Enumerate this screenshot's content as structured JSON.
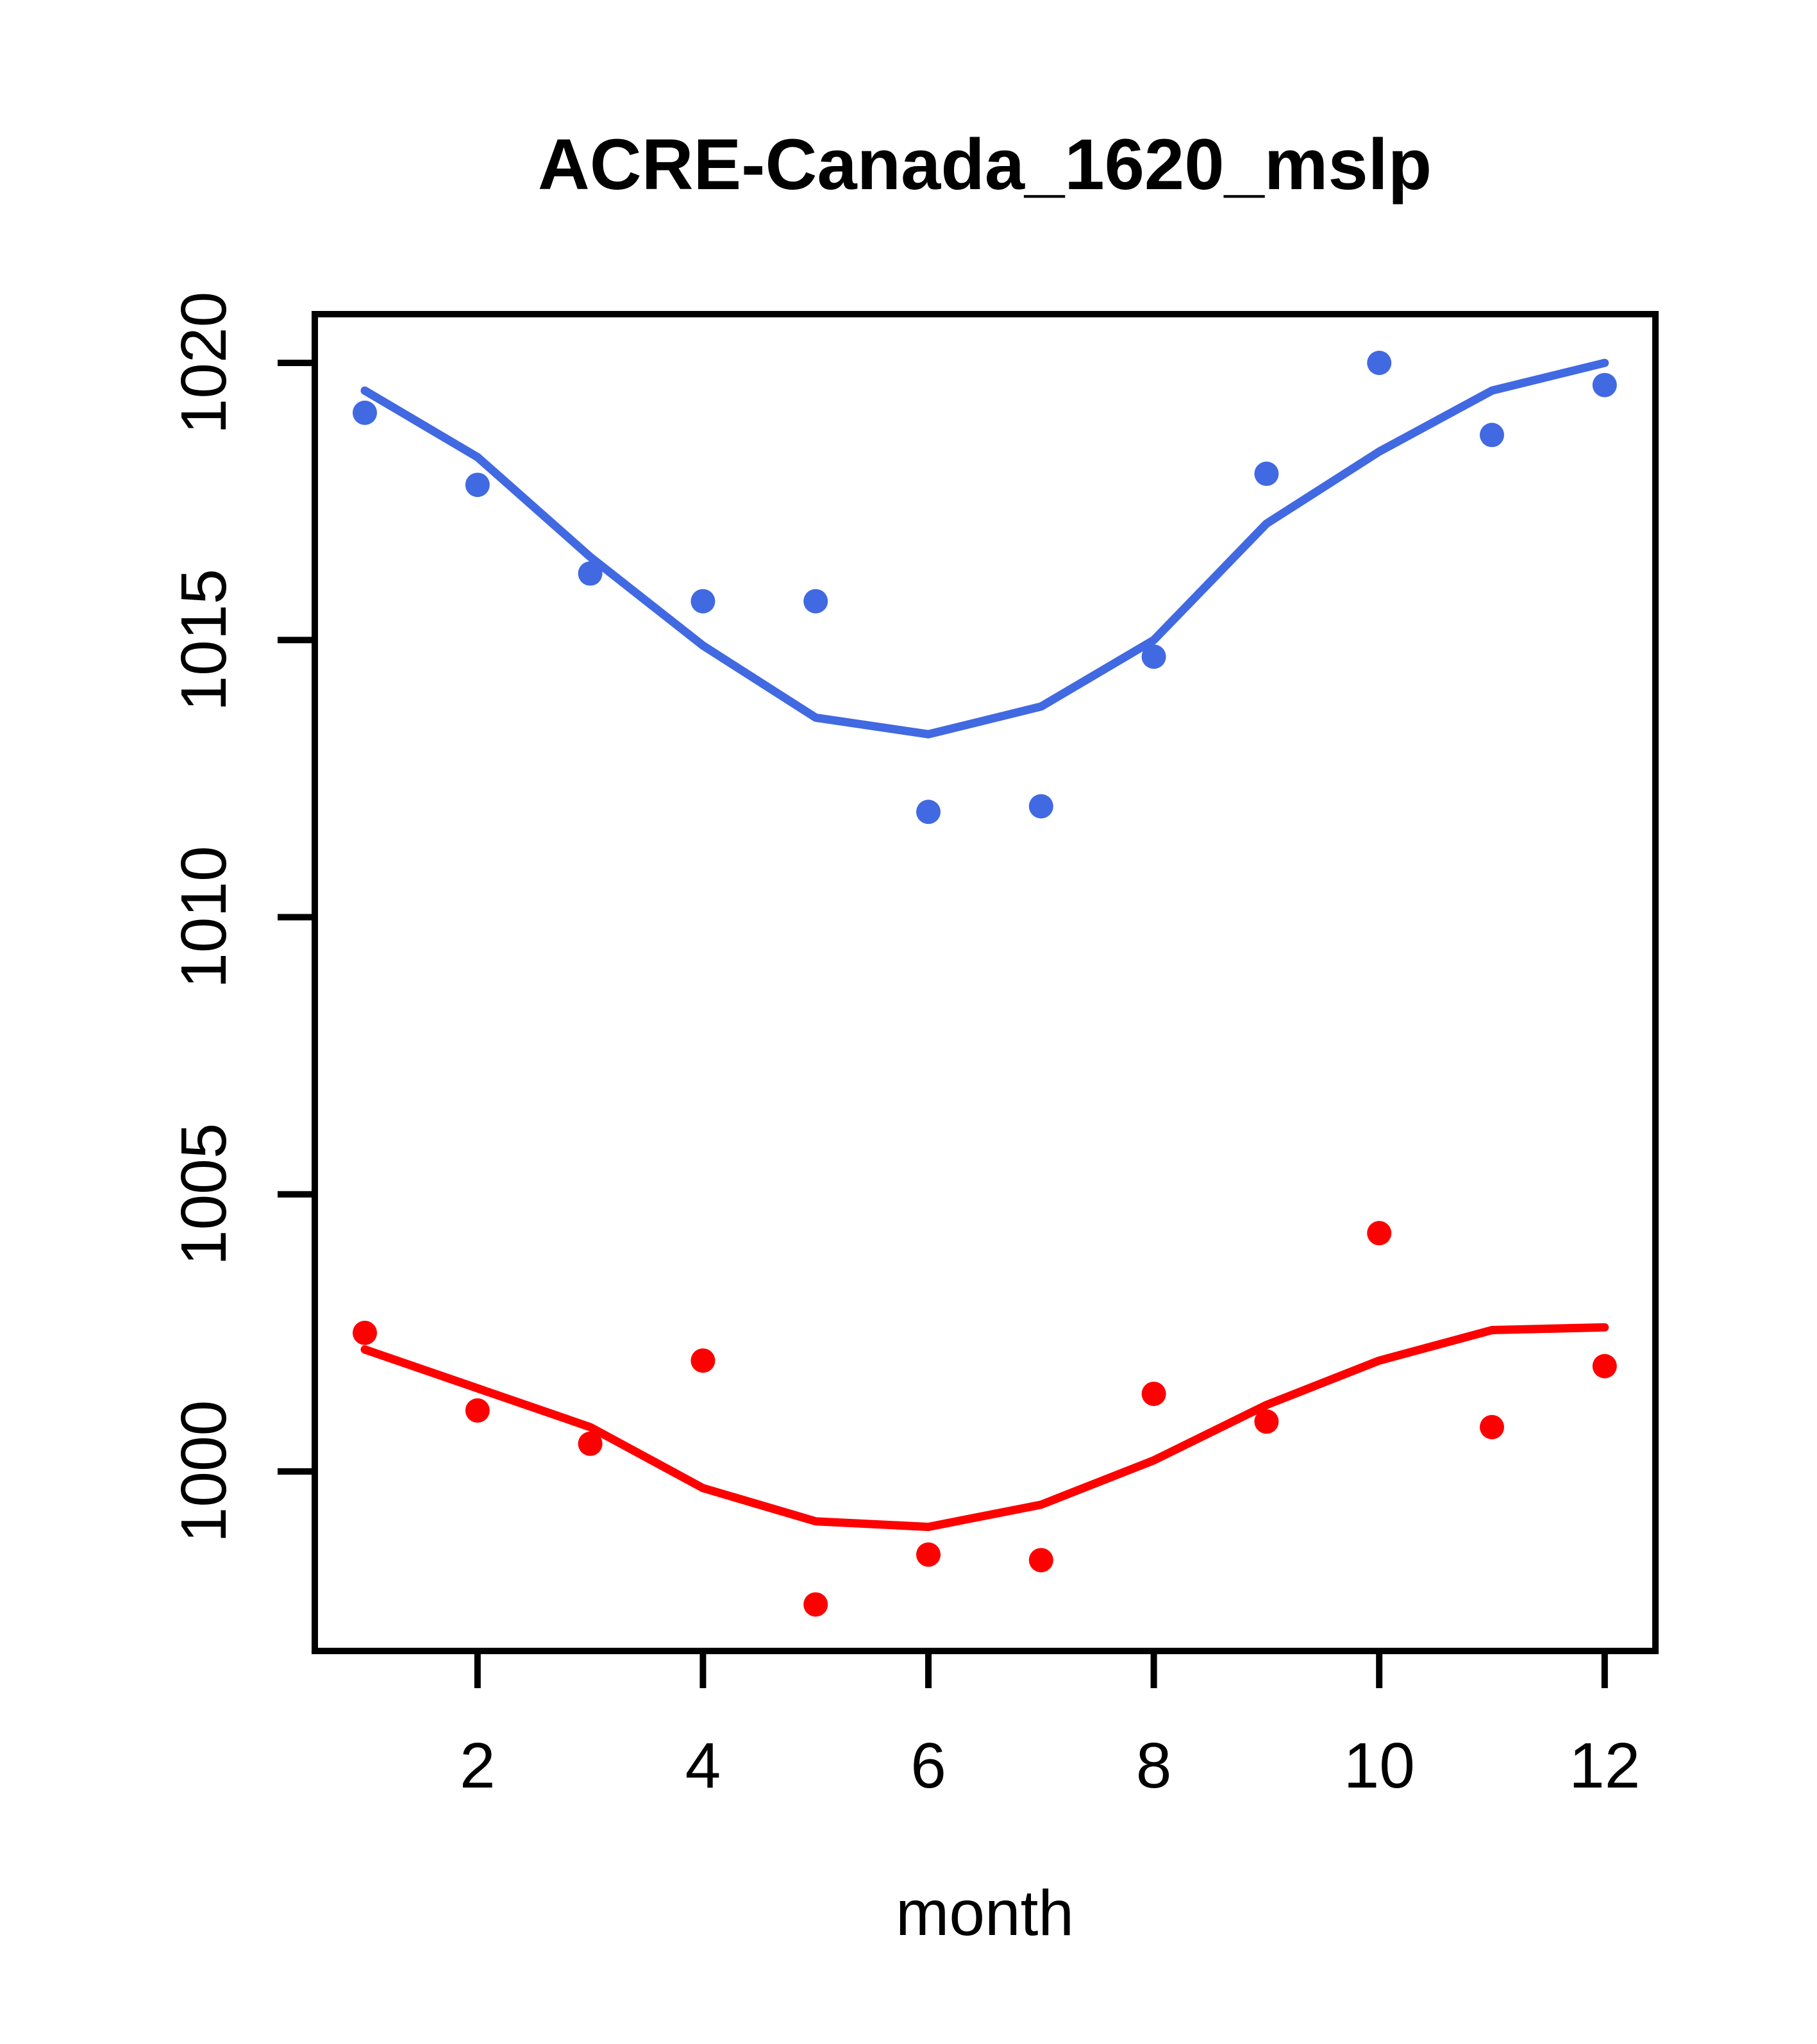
{
  "chart_data": {
    "type": "scatter",
    "title": "ACRE-Canada_1620_mslp",
    "xlabel": "month",
    "ylabel": "",
    "x": [
      1,
      2,
      3,
      4,
      5,
      6,
      7,
      8,
      9,
      10,
      11,
      12
    ],
    "x_tick_labels": [
      "2",
      "4",
      "6",
      "8",
      "10",
      "12"
    ],
    "x_tick_values": [
      2,
      4,
      6,
      8,
      10,
      12
    ],
    "y_tick_labels": [
      "1000",
      "1005",
      "1010",
      "1015",
      "1020"
    ],
    "y_tick_values": [
      1000,
      1005,
      1010,
      1015,
      1020
    ],
    "xlim": [
      0.56,
      12.44
    ],
    "ylim": [
      996.8,
      1020.9
    ],
    "grid": false,
    "legend_position": "none",
    "series": [
      {
        "name": "blue-monthly-points",
        "style": "points",
        "color": "#4169E1",
        "values": [
          1019.1,
          1017.8,
          1016.2,
          1015.7,
          1015.7,
          1011.9,
          1012.0,
          1014.7,
          1018.0,
          1020.0,
          1018.7,
          1019.6
        ]
      },
      {
        "name": "blue-loess-line",
        "style": "line",
        "color": "#4169E1",
        "values": [
          1019.5,
          1018.3,
          1016.5,
          1014.9,
          1013.6,
          1013.3,
          1013.8,
          1015.0,
          1017.1,
          1018.4,
          1019.5,
          1020.0
        ]
      },
      {
        "name": "red-monthly-points",
        "style": "points",
        "color": "#FF0000",
        "values": [
          1002.5,
          1001.1,
          1000.5,
          1002.0,
          997.6,
          998.5,
          998.4,
          1001.4,
          1000.9,
          1004.3,
          1000.8,
          1001.9
        ]
      },
      {
        "name": "red-loess-line",
        "style": "line",
        "color": "#FF0000",
        "values": [
          1002.2,
          1001.5,
          1000.8,
          999.7,
          999.1,
          999.0,
          999.4,
          1000.2,
          1001.2,
          1002.0,
          1002.55,
          1002.6
        ]
      }
    ],
    "colors": {
      "series_blue": "#4169E1",
      "series_red": "#FF0000",
      "axis": "#000000",
      "background": "#FFFFFF"
    }
  }
}
